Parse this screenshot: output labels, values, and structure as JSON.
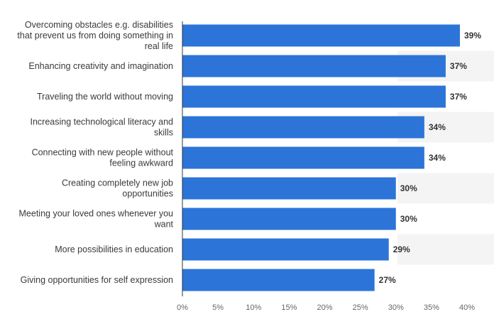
{
  "colors": {
    "bar": "#2c74d8",
    "stripe": "#f4f4f4",
    "axis": "#333333"
  },
  "chart_data": {
    "type": "bar",
    "orientation": "horizontal",
    "title": "",
    "xlabel": "",
    "ylabel": "",
    "xlim": [
      0,
      40
    ],
    "grid": false,
    "legend": "none",
    "categories": [
      [
        "Overcoming obstacles e.g. disabilities",
        "that prevent us from doing something in",
        "real life"
      ],
      [
        "Enhancing creativity and imagination"
      ],
      [
        "Traveling the world without moving"
      ],
      [
        "Increasing technological literacy and",
        "skills"
      ],
      [
        "Connecting with new people without",
        "feeling awkward"
      ],
      [
        "Creating completely new job",
        "opportunities"
      ],
      [
        "Meeting your loved ones whenever you",
        "want"
      ],
      [
        "More possibilities in education"
      ],
      [
        "Giving opportunities for self expression"
      ]
    ],
    "values": [
      39,
      37,
      37,
      34,
      34,
      30,
      30,
      29,
      27
    ],
    "value_labels": [
      "39%",
      "37%",
      "37%",
      "34%",
      "34%",
      "30%",
      "30%",
      "29%",
      "27%"
    ],
    "x_ticks": [
      0,
      5,
      10,
      15,
      20,
      25,
      30,
      35,
      40
    ],
    "x_tick_labels": [
      "0%",
      "5%",
      "10%",
      "15%",
      "20%",
      "25%",
      "30%",
      "35%",
      "40%"
    ]
  }
}
